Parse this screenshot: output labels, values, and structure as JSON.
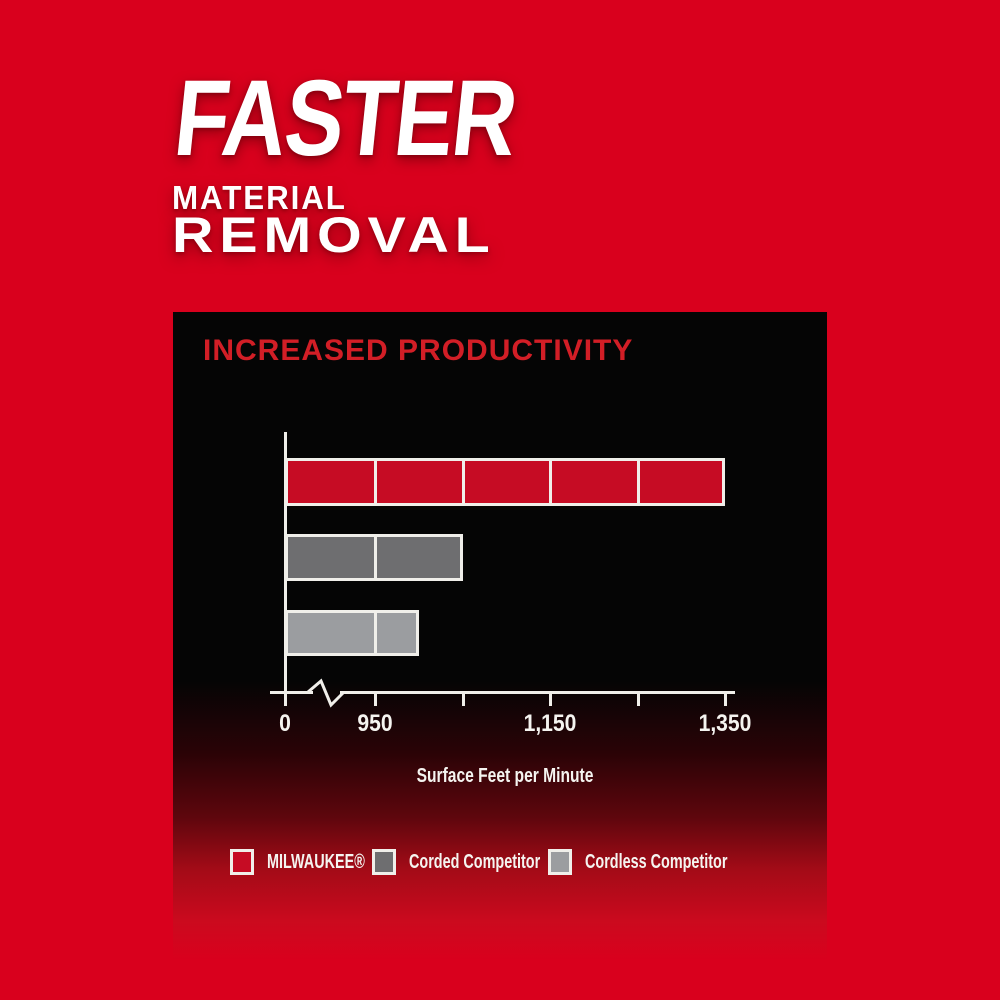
{
  "colors": {
    "background_red": "#D9001D",
    "headline_white": "#FFFFFF",
    "panel_black": "#050505",
    "panel_title_red": "#D21E26",
    "axis_white": "#F0EFEA",
    "milwaukee_red": "#C60C24",
    "corded_gray": "#6E6E70",
    "cordless_gray": "#9B9DA0"
  },
  "header": {
    "line1": "FASTER",
    "line2": "MATERIAL",
    "line3": "REMOVAL"
  },
  "chart_data": {
    "type": "bar",
    "orientation": "horizontal",
    "title": "INCREASED PRODUCTIVITY",
    "xlabel": "Surface Feet per Minute",
    "categories": [
      "MILWAUKEE®",
      "Corded Competitor",
      "Cordless Competitor"
    ],
    "values": [
      1350,
      1050,
      1000
    ],
    "colors": [
      "#C60C24",
      "#6E6E70",
      "#9B9DA0"
    ],
    "bar_segment_dividers_every": 100,
    "bar_segments_start_at": 950,
    "axis": {
      "xlim": [
        0,
        1350
      ],
      "break_between": [
        0,
        950
      ],
      "ticks": [
        {
          "value": 0,
          "label": "0"
        },
        {
          "value": 950,
          "label": "950"
        },
        {
          "value": 1050,
          "label": ""
        },
        {
          "value": 1150,
          "label": "1,150"
        },
        {
          "value": 1250,
          "label": ""
        },
        {
          "value": 1350,
          "label": "1,350"
        }
      ],
      "grid": false
    },
    "legend_position": "bottom"
  }
}
